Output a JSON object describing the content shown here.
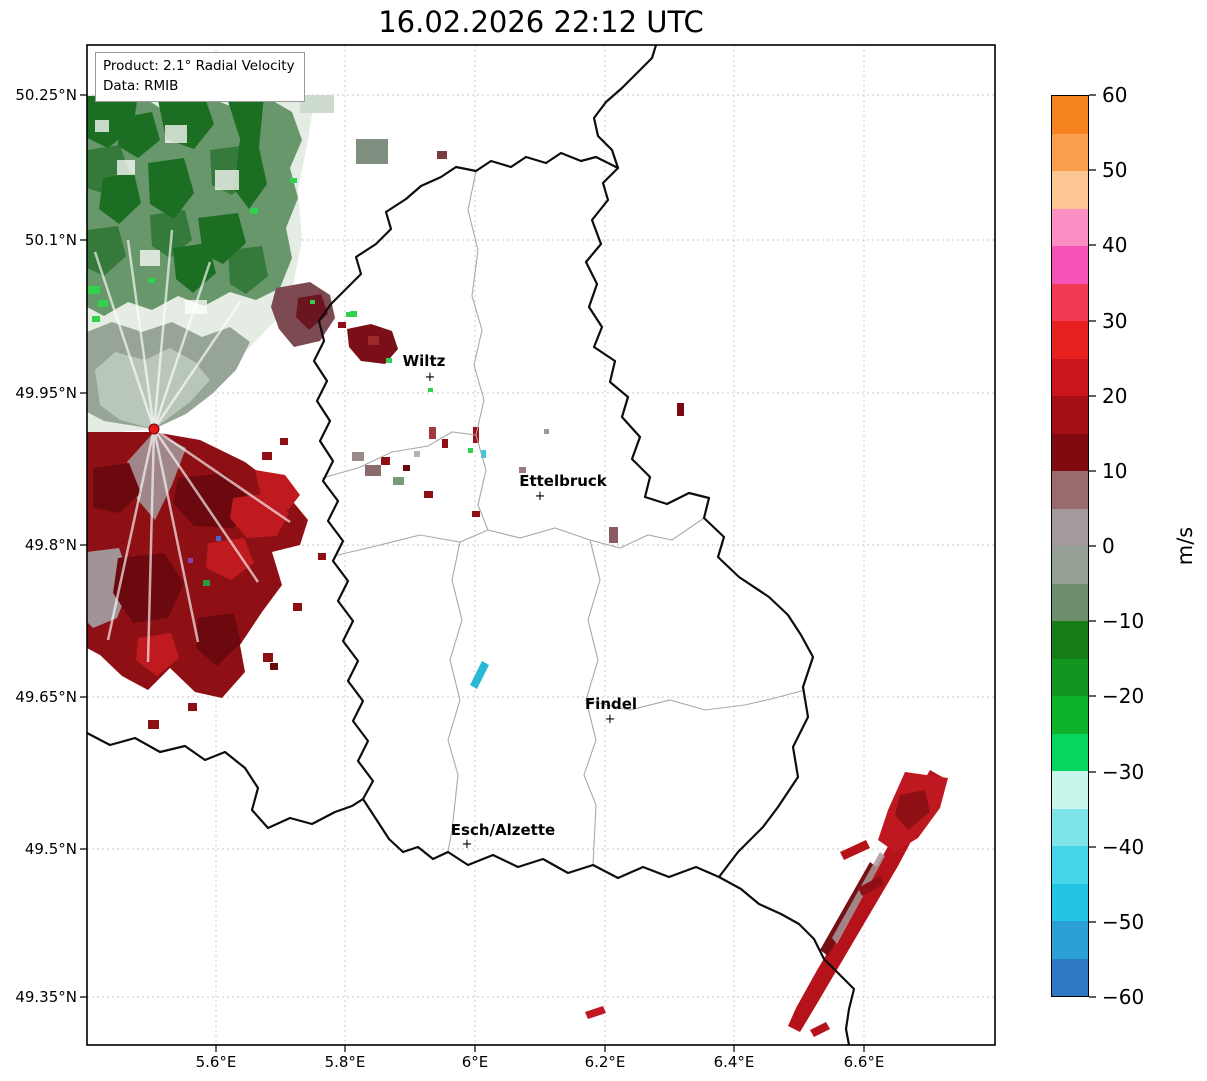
{
  "figure": {
    "title": "16.02.2026 22:12 UTC"
  },
  "info_box": {
    "line1": "Product: 2.1° Radial Velocity",
    "line2": "Data: RMIB"
  },
  "axes": {
    "x_ticks": [
      "5.6°E",
      "5.8°E",
      "6°E",
      "6.2°E",
      "6.4°E",
      "6.6°E"
    ],
    "y_ticks": [
      "50.25°N",
      "50.1°N",
      "49.95°N",
      "49.8°N",
      "49.65°N",
      "49.5°N",
      "49.35°N"
    ]
  },
  "colorbar": {
    "unit": "m/s",
    "tick_labels": [
      "60",
      "50",
      "40",
      "30",
      "20",
      "10",
      "0",
      "−10",
      "−20",
      "−30",
      "−40",
      "−50",
      "−60"
    ],
    "segment_colors_top_to_bottom": [
      "#f6821f",
      "#f9a04e",
      "#fcc694",
      "#fb8fc3",
      "#f553b5",
      "#f23b52",
      "#e6211f",
      "#c9151b",
      "#a60e15",
      "#7f0a10",
      "#996a6e",
      "#a39a9b",
      "#95a095",
      "#6e8f6e",
      "#167d19",
      "#129620",
      "#0fb32a",
      "#06d65e",
      "#c8f5ec",
      "#7fe3ea",
      "#45d4e8",
      "#22c5e2",
      "#2b9fd6",
      "#2f78c4"
    ]
  },
  "map": {
    "city_marker_glyph": "+",
    "radar_dot_color": "#e31a1c",
    "cities": [
      {
        "name": "Wiltz"
      },
      {
        "name": "Ettelbruck"
      },
      {
        "name": "Findel"
      },
      {
        "name": "Esch/Alzette"
      }
    ]
  },
  "chart_data": {
    "type": "heatmap",
    "title": "16.02.2026 22:12 UTC",
    "product": "2.1° Radial Velocity",
    "data_source": "RMIB",
    "value_unit": "m/s",
    "value_range": [
      -60,
      60
    ],
    "colorbar_ticks": [
      60,
      50,
      40,
      30,
      20,
      10,
      0,
      -10,
      -20,
      -30,
      -40,
      -50,
      -60
    ],
    "x_axis": {
      "unit": "°E",
      "ticks": [
        5.6,
        5.8,
        6.0,
        6.2,
        6.4,
        6.6
      ],
      "range": [
        5.4,
        6.8
      ]
    },
    "y_axis": {
      "unit": "°N",
      "ticks": [
        50.25,
        50.1,
        49.95,
        49.8,
        49.65,
        49.5,
        49.35
      ],
      "range": [
        49.3,
        50.3
      ]
    },
    "grid": true,
    "radar_site": {
      "lon_e": 5.5,
      "lat_n": 49.92
    },
    "cities": [
      {
        "name": "Wiltz",
        "lon_e": 5.93,
        "lat_n": 49.97
      },
      {
        "name": "Ettelbruck",
        "lon_e": 6.1,
        "lat_n": 49.85
      },
      {
        "name": "Findel",
        "lon_e": 6.21,
        "lat_n": 49.63
      },
      {
        "name": "Esch/Alzette",
        "lon_e": 5.99,
        "lat_n": 49.5
      }
    ],
    "echo_regions": [
      {
        "velocity_sign": "negative (toward radar)",
        "approx_velocity_ms": [
          -30,
          -2
        ],
        "approx_extent": {
          "lon_e": [
            5.4,
            5.78
          ],
          "lat_n": [
            49.93,
            50.3
          ]
        },
        "appearance": "green shades north-west of radar site"
      },
      {
        "velocity_sign": "positive (away from radar)",
        "approx_velocity_ms": [
          8,
          25
        ],
        "approx_extent": {
          "lon_e": [
            5.4,
            5.75
          ],
          "lat_n": [
            49.66,
            49.93
          ]
        },
        "appearance": "dark red shades south of radar site"
      },
      {
        "velocity_sign": "positive",
        "approx_velocity_ms": [
          15,
          30
        ],
        "approx_extent": {
          "lon_e": [
            6.45,
            6.73
          ],
          "lat_n": [
            49.31,
            49.56
          ]
        },
        "appearance": "narrow SW-NE oriented red band near the Moselle"
      },
      {
        "velocity_sign": "mixed",
        "approx_velocity_ms": [
          -60,
          30
        ],
        "appearance": "isolated small echoes scattered over central Luxembourg"
      }
    ]
  }
}
